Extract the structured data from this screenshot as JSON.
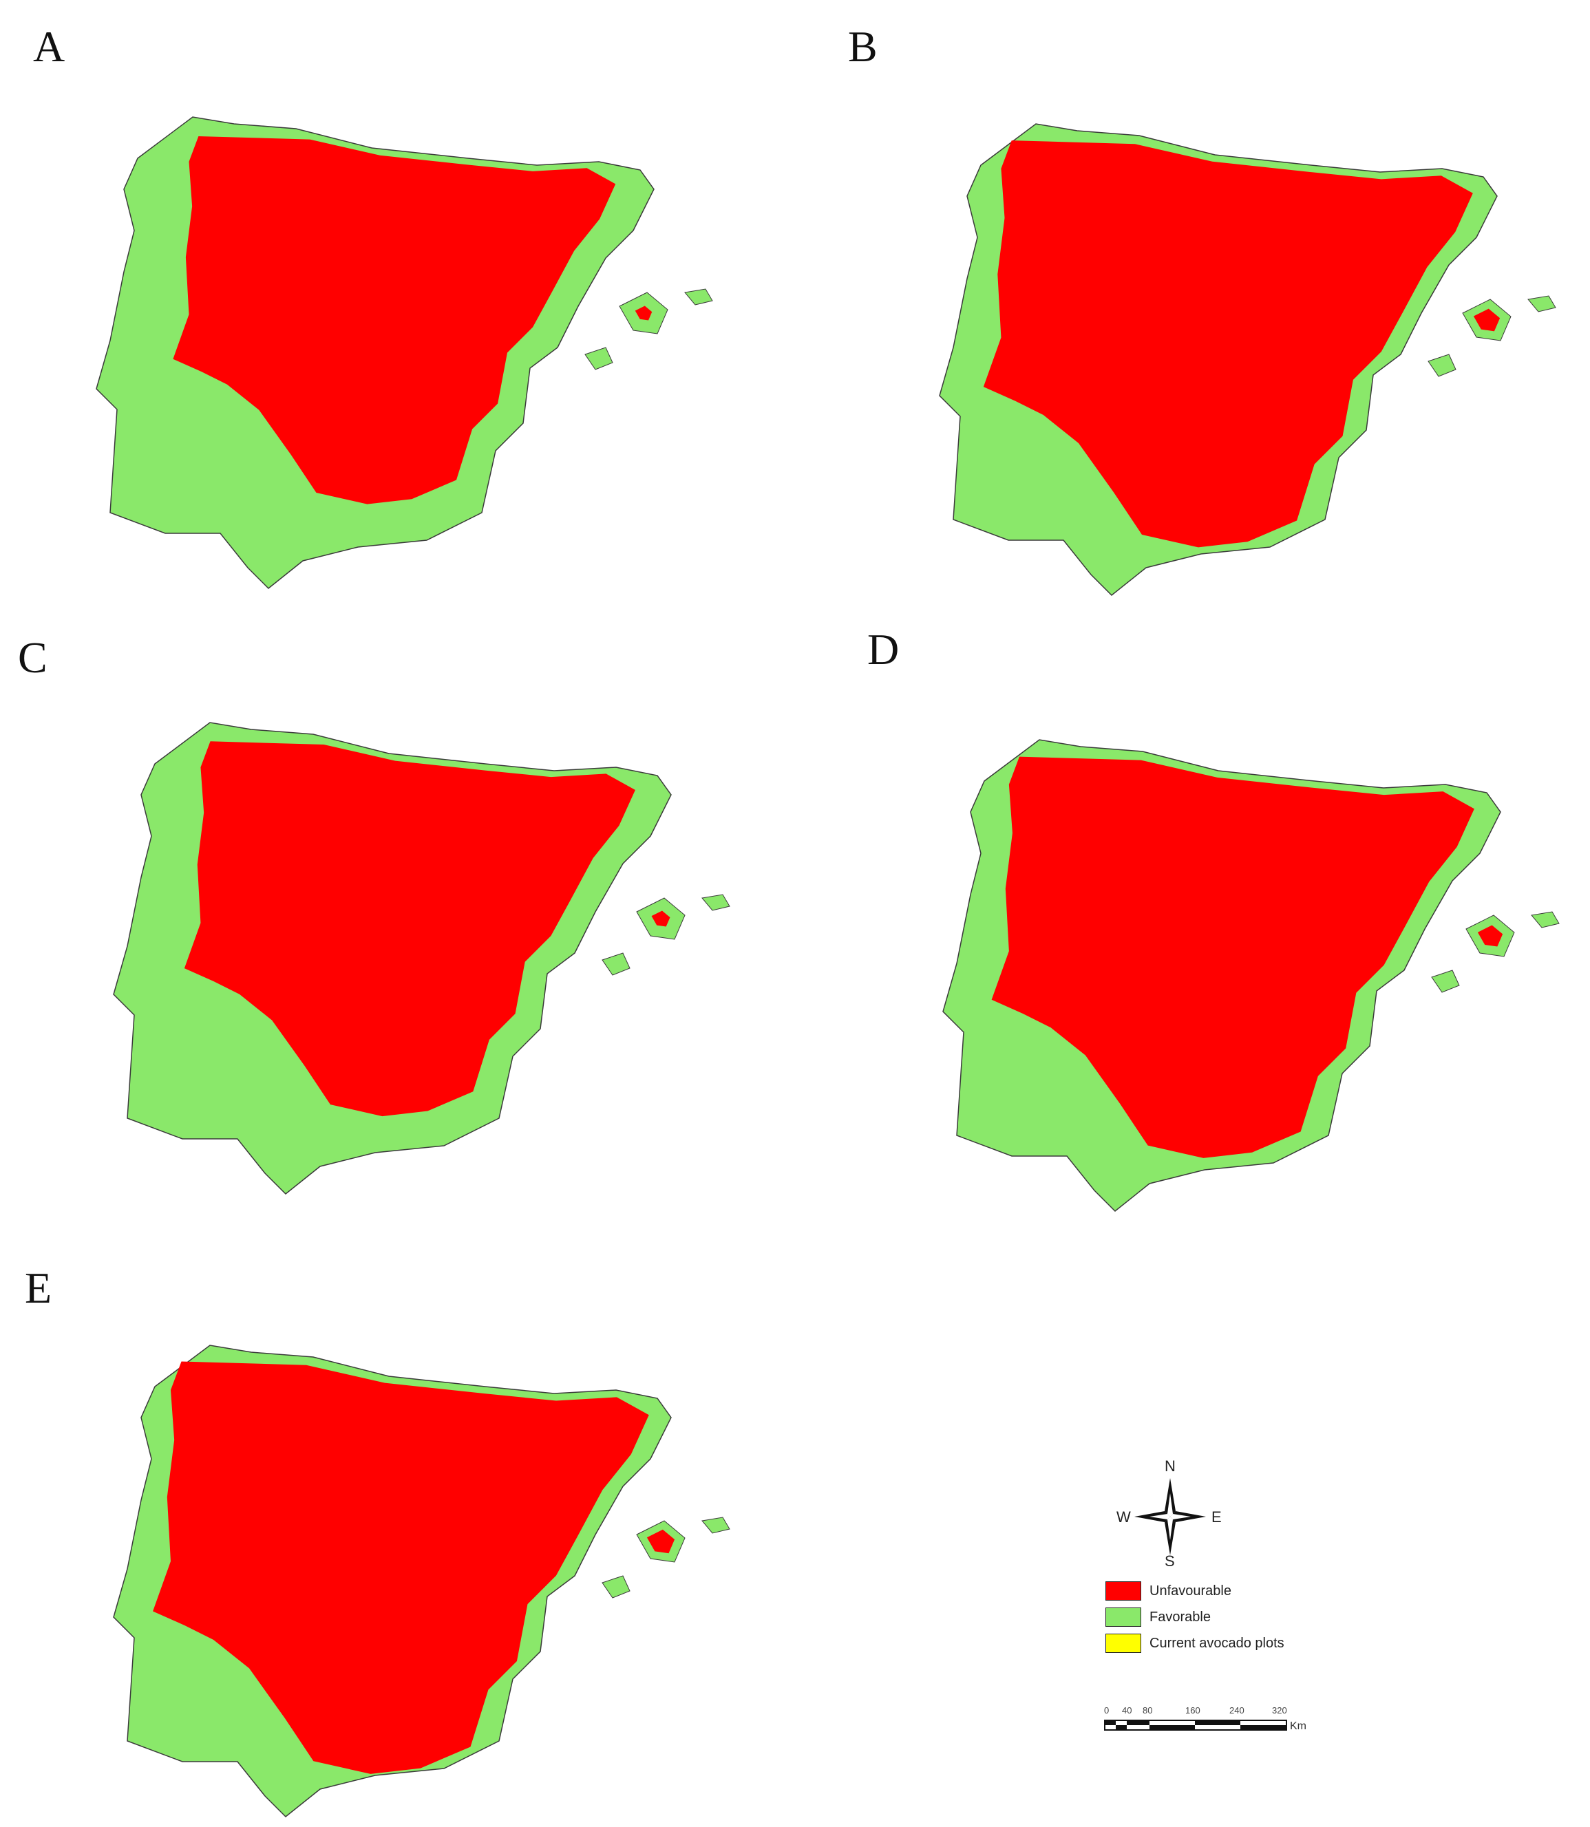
{
  "panels": [
    {
      "letter": "A",
      "unfavourable_level": 0.5
    },
    {
      "letter": "B",
      "unfavourable_level": 0.78
    },
    {
      "letter": "C",
      "unfavourable_level": 0.55
    },
    {
      "letter": "D",
      "unfavourable_level": 0.74
    },
    {
      "letter": "E",
      "unfavourable_level": 0.82
    }
  ],
  "compass": {
    "n": "N",
    "s": "S",
    "e": "E",
    "w": "W"
  },
  "legend": {
    "items": [
      {
        "label": "Unfavourable",
        "color": "#ff0000"
      },
      {
        "label": "Favorable",
        "color": "#8ae86a"
      },
      {
        "label": "Current avocado plots",
        "color": "#ffff00"
      }
    ]
  },
  "scale": {
    "ticks": [
      "0",
      "40",
      "80",
      "160",
      "240",
      "320"
    ],
    "unit": "Km"
  },
  "colors": {
    "unfavourable": "#ff0000",
    "favorable": "#8ae86a",
    "coast_outline": "#3a3a3a"
  }
}
